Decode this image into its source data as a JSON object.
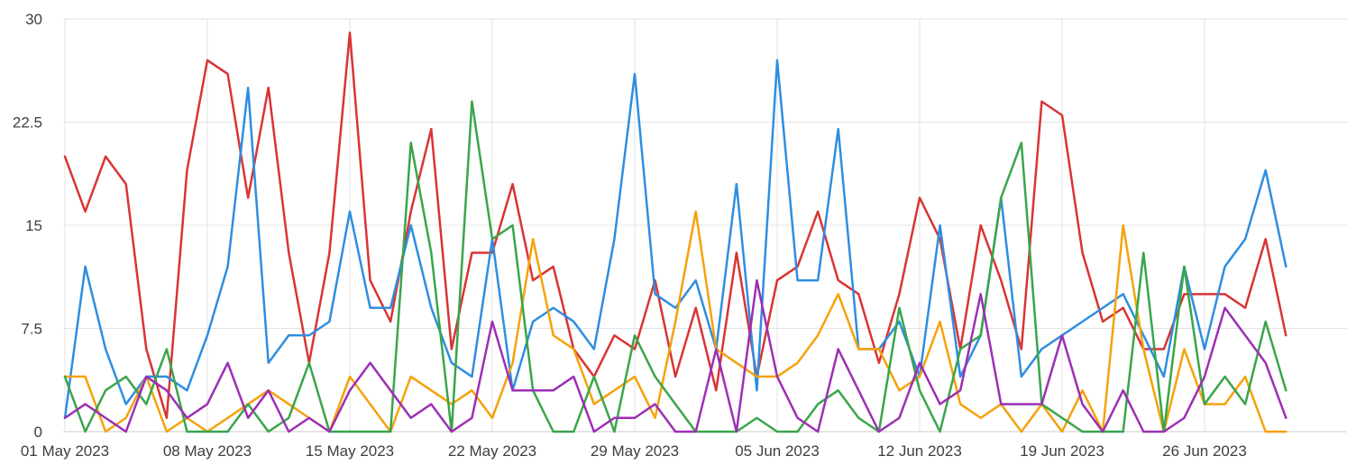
{
  "chart_data": {
    "type": "line",
    "title": "",
    "xlabel": "",
    "ylabel": "",
    "x_start": "2023-05-01",
    "x_end": "2023-07-03",
    "xticks": [
      "01 May 2023",
      "08 May 2023",
      "15 May 2023",
      "22 May 2023",
      "29 May 2023",
      "05 Jun 2023",
      "12 Jun 2023",
      "19 Jun 2023",
      "26 Jun 2023"
    ],
    "yticks": [
      "0",
      "7.5",
      "15",
      "22.5",
      "30"
    ],
    "ylim": [
      0,
      30
    ],
    "grid": true,
    "legend": "none",
    "series": [
      {
        "color": "#d93434",
        "values": [
          20,
          16,
          20,
          18,
          6,
          1,
          19,
          27,
          26,
          17,
          25,
          13,
          5,
          13,
          29,
          11,
          8,
          16,
          22,
          6,
          13,
          13,
          18,
          11,
          12,
          6,
          4,
          7,
          6,
          11,
          4,
          9,
          3,
          13,
          4,
          11,
          12,
          16,
          11,
          10,
          5,
          10,
          17,
          14,
          6,
          15,
          11,
          6,
          24,
          23,
          13,
          8,
          9,
          6,
          6,
          10,
          10,
          10,
          9,
          14,
          7
        ]
      },
      {
        "color": "#2e8ee0",
        "values": [
          1,
          12,
          6,
          2,
          4,
          4,
          3,
          7,
          12,
          25,
          5,
          7,
          7,
          8,
          16,
          9,
          9,
          15,
          9,
          5,
          4,
          14,
          3,
          8,
          9,
          8,
          6,
          14,
          26,
          10,
          9,
          11,
          6,
          18,
          3,
          27,
          11,
          11,
          22,
          6,
          6,
          8,
          4,
          15,
          4,
          7,
          17,
          4,
          6,
          7,
          8,
          9,
          10,
          7,
          4,
          12,
          6,
          12,
          14,
          19,
          12
        ]
      },
      {
        "color": "#f5a20a",
        "values": [
          4,
          4,
          0,
          1,
          4,
          0,
          1,
          0,
          1,
          2,
          3,
          2,
          1,
          0,
          4,
          2,
          0,
          4,
          3,
          2,
          3,
          1,
          5,
          14,
          7,
          6,
          2,
          3,
          4,
          1,
          8,
          16,
          6,
          5,
          4,
          4,
          5,
          7,
          10,
          6,
          6,
          3,
          4,
          8,
          2,
          1,
          2,
          0,
          2,
          0,
          3,
          0,
          15,
          6,
          0,
          6,
          2,
          2,
          4,
          0,
          0
        ]
      },
      {
        "color": "#3aa54a",
        "values": [
          4,
          0,
          3,
          4,
          2,
          6,
          0,
          0,
          0,
          2,
          0,
          1,
          5,
          0,
          0,
          0,
          0,
          21,
          13,
          0,
          24,
          14,
          15,
          3,
          0,
          0,
          4,
          0,
          7,
          4,
          2,
          0,
          0,
          0,
          1,
          0,
          0,
          2,
          3,
          1,
          0,
          9,
          3,
          0,
          6,
          7,
          17,
          21,
          2,
          1,
          0,
          0,
          0,
          13,
          0,
          12,
          2,
          4,
          2,
          8,
          3
        ]
      },
      {
        "color": "#9c2fb4",
        "values": [
          1,
          2,
          1,
          0,
          4,
          3,
          1,
          2,
          5,
          1,
          3,
          0,
          1,
          0,
          3,
          5,
          3,
          1,
          2,
          0,
          1,
          8,
          3,
          3,
          3,
          4,
          0,
          1,
          1,
          2,
          0,
          0,
          6,
          0,
          11,
          4,
          1,
          0,
          6,
          3,
          0,
          1,
          5,
          2,
          3,
          10,
          2,
          2,
          2,
          7,
          2,
          0,
          3,
          0,
          0,
          1,
          4,
          9,
          7,
          5,
          1
        ]
      }
    ]
  }
}
